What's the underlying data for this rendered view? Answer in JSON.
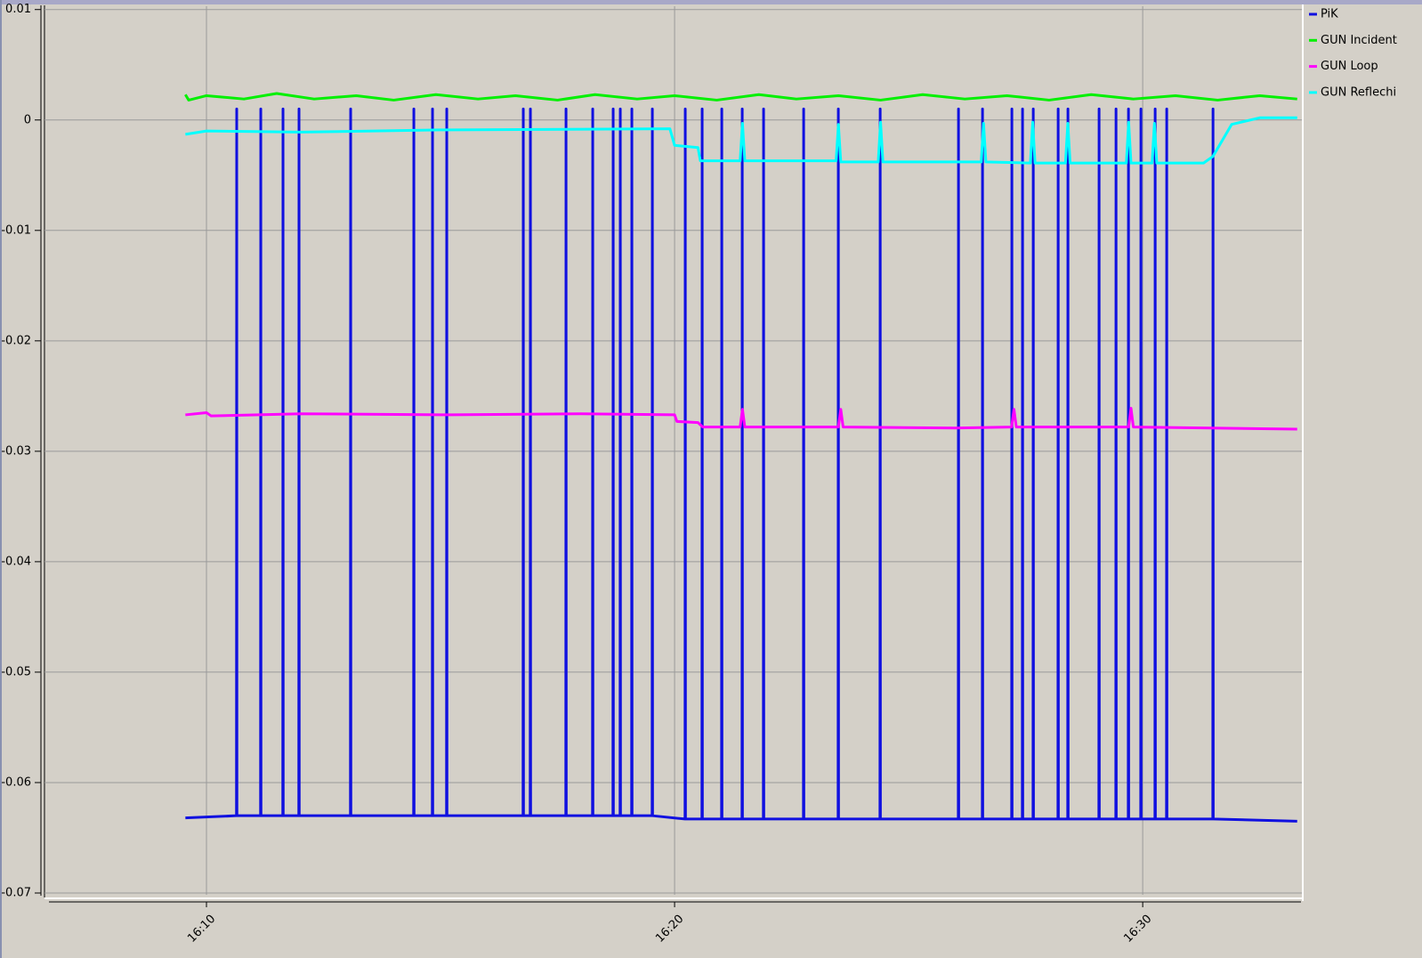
{
  "chart_data": {
    "type": "line",
    "xlim": [
      6.54,
      33.4
    ],
    "xticks": [
      {
        "value": 10,
        "label": "16:10"
      },
      {
        "value": 20,
        "label": "16:20"
      },
      {
        "value": 30,
        "label": "16:30"
      }
    ],
    "ylim": [
      -0.07,
      0.0103
    ],
    "yticks": [
      0.01,
      0,
      -0.01,
      -0.02,
      -0.03,
      -0.04,
      -0.05,
      -0.06,
      -0.07
    ],
    "grid": true,
    "legend": "right",
    "series": [
      {
        "name": "PiK",
        "color": "#1010e0",
        "x": [
          9.55,
          10.641,
          10.646,
          10.651,
          11.155,
          11.16,
          11.165,
          11.63,
          11.635,
          11.64,
          11.972,
          11.977,
          11.982,
          13.075,
          13.08,
          13.085,
          14.425,
          14.43,
          14.435,
          14.824,
          14.829,
          14.834,
          15.128,
          15.133,
          15.138,
          16.763,
          16.768,
          16.773,
          16.915,
          16.92,
          16.925,
          17.676,
          17.681,
          17.686,
          18.246,
          18.251,
          18.256,
          18.683,
          18.688,
          18.693,
          18.835,
          18.84,
          18.845,
          19.082,
          19.087,
          19.092,
          19.52,
          19.525,
          19.53,
          20.223,
          20.228,
          20.233,
          20.584,
          20.589,
          20.594,
          21.003,
          21.008,
          21.013,
          21.44,
          21.445,
          21.45,
          21.896,
          21.901,
          21.906,
          22.752,
          22.757,
          22.762,
          23.493,
          23.498,
          23.503,
          24.387,
          24.392,
          24.397,
          26.06,
          26.065,
          26.07,
          26.573,
          26.578,
          26.583,
          27.2,
          27.205,
          27.21,
          27.428,
          27.433,
          27.438,
          27.657,
          27.662,
          27.667,
          28.189,
          28.194,
          28.199,
          28.398,
          28.403,
          28.408,
          29.063,
          29.068,
          29.073,
          29.425,
          29.43,
          29.435,
          29.691,
          29.696,
          29.701,
          29.957,
          29.962,
          29.967,
          30.261,
          30.266,
          30.271,
          30.508,
          30.513,
          30.518,
          31.497,
          31.502,
          31.507,
          33.3
        ],
        "values": [
          -0.0632,
          -0.063,
          0.001,
          -0.063,
          -0.063,
          0.001,
          -0.063,
          -0.063,
          0.001,
          -0.063,
          -0.063,
          0.001,
          -0.063,
          -0.063,
          0.001,
          -0.063,
          -0.063,
          0.001,
          -0.063,
          -0.063,
          0.001,
          -0.063,
          -0.063,
          0.001,
          -0.063,
          -0.063,
          0.001,
          -0.063,
          -0.063,
          0.001,
          -0.063,
          -0.063,
          0.001,
          -0.063,
          -0.063,
          0.001,
          -0.063,
          -0.063,
          0.001,
          -0.063,
          -0.063,
          0.001,
          -0.063,
          -0.063,
          0.001,
          -0.063,
          -0.063,
          0.001,
          -0.063,
          -0.0633,
          0.001,
          -0.0633,
          -0.0633,
          0.001,
          -0.0633,
          -0.0633,
          0.001,
          -0.0633,
          -0.0633,
          0.001,
          -0.0633,
          -0.0633,
          0.001,
          -0.0633,
          -0.0633,
          0.001,
          -0.0633,
          -0.0633,
          0.001,
          -0.0633,
          -0.0633,
          0.001,
          -0.0633,
          -0.0633,
          0.001,
          -0.0633,
          -0.0633,
          0.001,
          -0.0633,
          -0.0633,
          0.001,
          -0.0633,
          -0.0633,
          0.001,
          -0.0633,
          -0.0633,
          0.001,
          -0.0633,
          -0.0633,
          0.001,
          -0.0633,
          -0.0633,
          0.001,
          -0.0633,
          -0.0633,
          0.001,
          -0.0633,
          -0.0633,
          0.001,
          -0.0633,
          -0.0633,
          0.001,
          -0.0633,
          -0.0633,
          0.001,
          -0.0633,
          -0.0633,
          0.001,
          -0.0633,
          -0.0633,
          0.001,
          -0.0633,
          -0.0633,
          0.001,
          -0.0633,
          -0.0635
        ]
      },
      {
        "name": "GUN Incident",
        "color": "#00f000",
        "x": [
          9.55,
          9.62,
          10,
          10.8,
          11.5,
          12.3,
          13.2,
          14,
          14.9,
          15.8,
          16.6,
          17.5,
          18.3,
          19.2,
          20,
          20.9,
          21.8,
          22.6,
          23.5,
          24.4,
          25.3,
          26.2,
          27.1,
          28,
          28.9,
          29.8,
          30.7,
          31.6,
          32.5,
          33.3
        ],
        "values": [
          0.0023,
          0.0018,
          0.0022,
          0.0019,
          0.0024,
          0.0019,
          0.0022,
          0.0018,
          0.0023,
          0.0019,
          0.0022,
          0.0018,
          0.0023,
          0.0019,
          0.0022,
          0.0018,
          0.0023,
          0.0019,
          0.0022,
          0.0018,
          0.0023,
          0.0019,
          0.0022,
          0.0018,
          0.0023,
          0.0019,
          0.0022,
          0.0018,
          0.0022,
          0.0019
        ]
      },
      {
        "name": "GUN Loop",
        "color": "#ff00ff",
        "x": [
          9.55,
          10,
          10.1,
          12,
          15,
          18,
          20,
          20.05,
          20.5,
          20.6,
          21.4,
          21.45,
          21.5,
          23.5,
          23.55,
          23.6,
          26,
          27.2,
          27.25,
          27.3,
          29.7,
          29.75,
          29.8,
          33.3
        ],
        "values": [
          -0.0267,
          -0.0265,
          -0.0268,
          -0.0266,
          -0.0267,
          -0.0266,
          -0.0267,
          -0.0273,
          -0.0274,
          -0.0278,
          -0.0278,
          -0.0262,
          -0.0278,
          -0.0278,
          -0.0262,
          -0.0278,
          -0.0279,
          -0.0278,
          -0.0262,
          -0.0278,
          -0.0278,
          -0.0261,
          -0.0278,
          -0.028
        ]
      },
      {
        "name": "GUN Reflechi",
        "color": "#00ffff",
        "x": [
          9.55,
          10,
          12,
          15,
          19.9,
          20,
          20.5,
          20.55,
          21.4,
          21.45,
          21.5,
          23.45,
          23.5,
          23.55,
          24.35,
          24.4,
          24.45,
          26.55,
          26.6,
          26.65,
          27.6,
          27.65,
          27.7,
          28.35,
          28.4,
          28.45,
          29.65,
          29.7,
          29.75,
          30.2,
          30.25,
          30.3,
          31.3,
          31.5,
          31.9,
          32.5,
          33.3
        ],
        "values": [
          -0.0013,
          -0.001,
          -0.0011,
          -0.0009,
          -0.0008,
          -0.0023,
          -0.0025,
          -0.0037,
          -0.0037,
          -0.0003,
          -0.0037,
          -0.0037,
          -0.0004,
          -0.0038,
          -0.0038,
          -0.0002,
          -0.0038,
          -0.0038,
          -0.0003,
          -0.0038,
          -0.0039,
          -0.0002,
          -0.0039,
          -0.0039,
          -0.0003,
          -0.0039,
          -0.0039,
          -0.0002,
          -0.0039,
          -0.0039,
          -0.0003,
          -0.0039,
          -0.0039,
          -0.0033,
          -0.0004,
          0.0002,
          0.0002
        ]
      }
    ]
  }
}
